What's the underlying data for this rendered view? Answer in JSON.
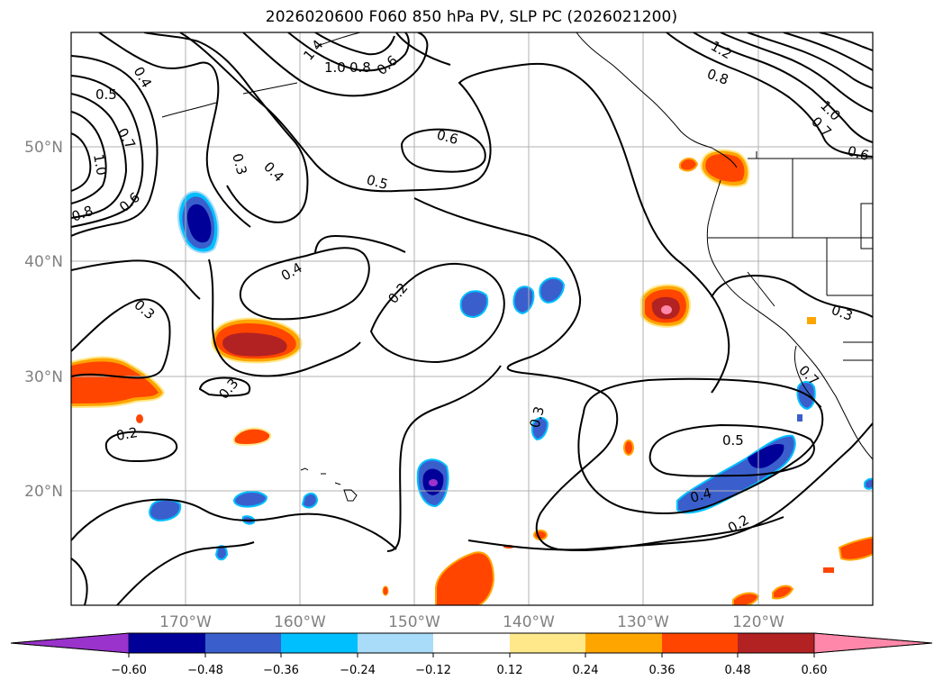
{
  "title": "2026020600 F060 850 hPa PV, SLP PC (2026021200)",
  "axes": {
    "lon_labels": [
      "170°W",
      "160°W",
      "150°W",
      "140°W",
      "130°W",
      "120°W"
    ],
    "lat_labels": [
      "50°N",
      "40°N",
      "30°N",
      "20°N"
    ]
  },
  "colorbar": {
    "levels": [
      "−0.60",
      "−0.48",
      "−0.36",
      "−0.24",
      "−0.12",
      "0.12",
      "0.24",
      "0.36",
      "0.48",
      "0.60"
    ],
    "colors": [
      "#9933cc",
      "#000099",
      "#3a5fcd",
      "#00bfff",
      "#a8dcf8",
      "#ffffff",
      "#ffe88a",
      "#ffa500",
      "#ff4500",
      "#b22222",
      "#ff88aa"
    ]
  },
  "contour_labels": [
    "0.4",
    "0.5",
    "0.7",
    "1.0",
    "0.8",
    "0.6",
    "0.3",
    "0.4",
    "0.6",
    "0.5",
    "0.4",
    "0.2",
    "0.3",
    "0.3",
    "0.2",
    "0.3",
    "0.5",
    "0.4",
    "0.2",
    "1.4",
    "1.0",
    "0.8",
    "0.6",
    "1.2",
    "0.8",
    "1.0",
    "0.7",
    "0.6",
    "0.3",
    "0.7"
  ]
}
